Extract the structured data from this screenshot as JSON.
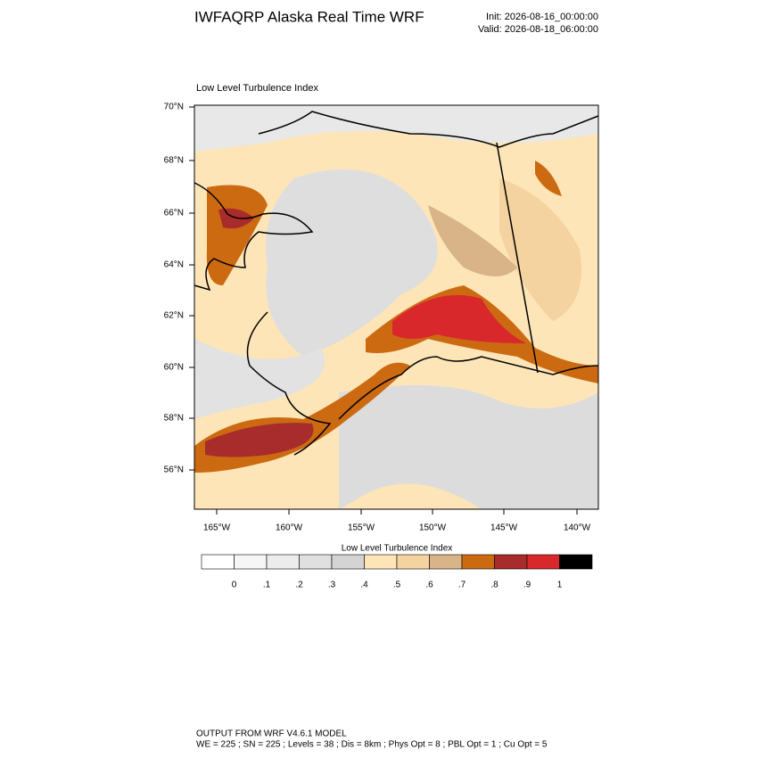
{
  "header": {
    "title": "IWFAQRP Alaska Real Time WRF",
    "init": "Init: 2026-08-16_00:00:00",
    "valid": "Valid: 2026-08-18_06:00:00"
  },
  "map": {
    "title": "Low Level Turbulence Index",
    "lat_labels": [
      "70°N",
      "68°N",
      "66°N",
      "64°N",
      "62°N",
      "60°N",
      "58°N",
      "56°N"
    ],
    "lon_labels": [
      "165°W",
      "160°W",
      "155°W",
      "150°W",
      "145°W",
      "140°W"
    ]
  },
  "colorbar": {
    "title": "Low Level Turbulence Index",
    "labels": [
      "0",
      ".1",
      ".2",
      ".3",
      ".4",
      ".5",
      ".6",
      ".7",
      ".8",
      ".9",
      "1"
    ],
    "colors": [
      "#ffffff",
      "#f6f6f6",
      "#ececec",
      "#e0e0e0",
      "#d4d4d4",
      "#fde5b8",
      "#f5d3a0",
      "#d8b488",
      "#cc6a12",
      "#a82c2c",
      "#d8282c",
      "#000000"
    ]
  },
  "footer": {
    "lines": [
      "OUTPUT FROM WRF V4.6.1 MODEL",
      "WE = 225 ; SN = 225 ; Levels = 38 ; Dis = 8km ; Phys Opt = 8 ; PBL Opt = 1 ; Cu Opt = 5"
    ]
  }
}
